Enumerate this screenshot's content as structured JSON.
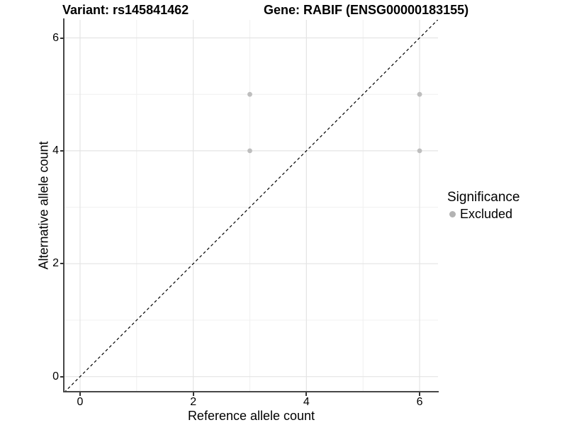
{
  "header": {
    "variant_title": "Variant: rs145841462",
    "gene_title": "Gene: RABIF (ENSG00000183155)"
  },
  "legend": {
    "title": "Significance",
    "items": [
      {
        "label": "Excluded",
        "color": "#b3b3b3"
      }
    ]
  },
  "chart_data": {
    "type": "scatter",
    "xlabel": "Reference allele count",
    "ylabel": "Alternative allele count",
    "xlim": [
      -0.275,
      6.325
    ],
    "ylim": [
      -0.28,
      6.32
    ],
    "x_ticks": [
      0,
      2,
      4,
      6
    ],
    "y_ticks": [
      0,
      2,
      4,
      6
    ],
    "x_tick_labels": [
      "0",
      "2",
      "4",
      "6"
    ],
    "y_tick_labels": [
      "0",
      "2",
      "4",
      "6"
    ],
    "x_minor_gridlines": [
      1,
      3,
      5
    ],
    "y_minor_gridlines": [
      1,
      3,
      5
    ],
    "grid": true,
    "legend_position": "right",
    "series": [
      {
        "name": "Excluded",
        "color": "#bebebe",
        "points": [
          [
            3,
            4
          ],
          [
            3,
            5
          ],
          [
            6,
            4
          ],
          [
            6,
            5
          ]
        ]
      }
    ],
    "reference_line": {
      "type": "identity",
      "slope": 1,
      "intercept": 0,
      "style": "dashed",
      "color": "#000000"
    },
    "colors": {
      "major_grid": "#e4e4e4",
      "minor_grid": "#f0f0f0",
      "axis_line": "#474747",
      "tick": "#333333"
    }
  }
}
